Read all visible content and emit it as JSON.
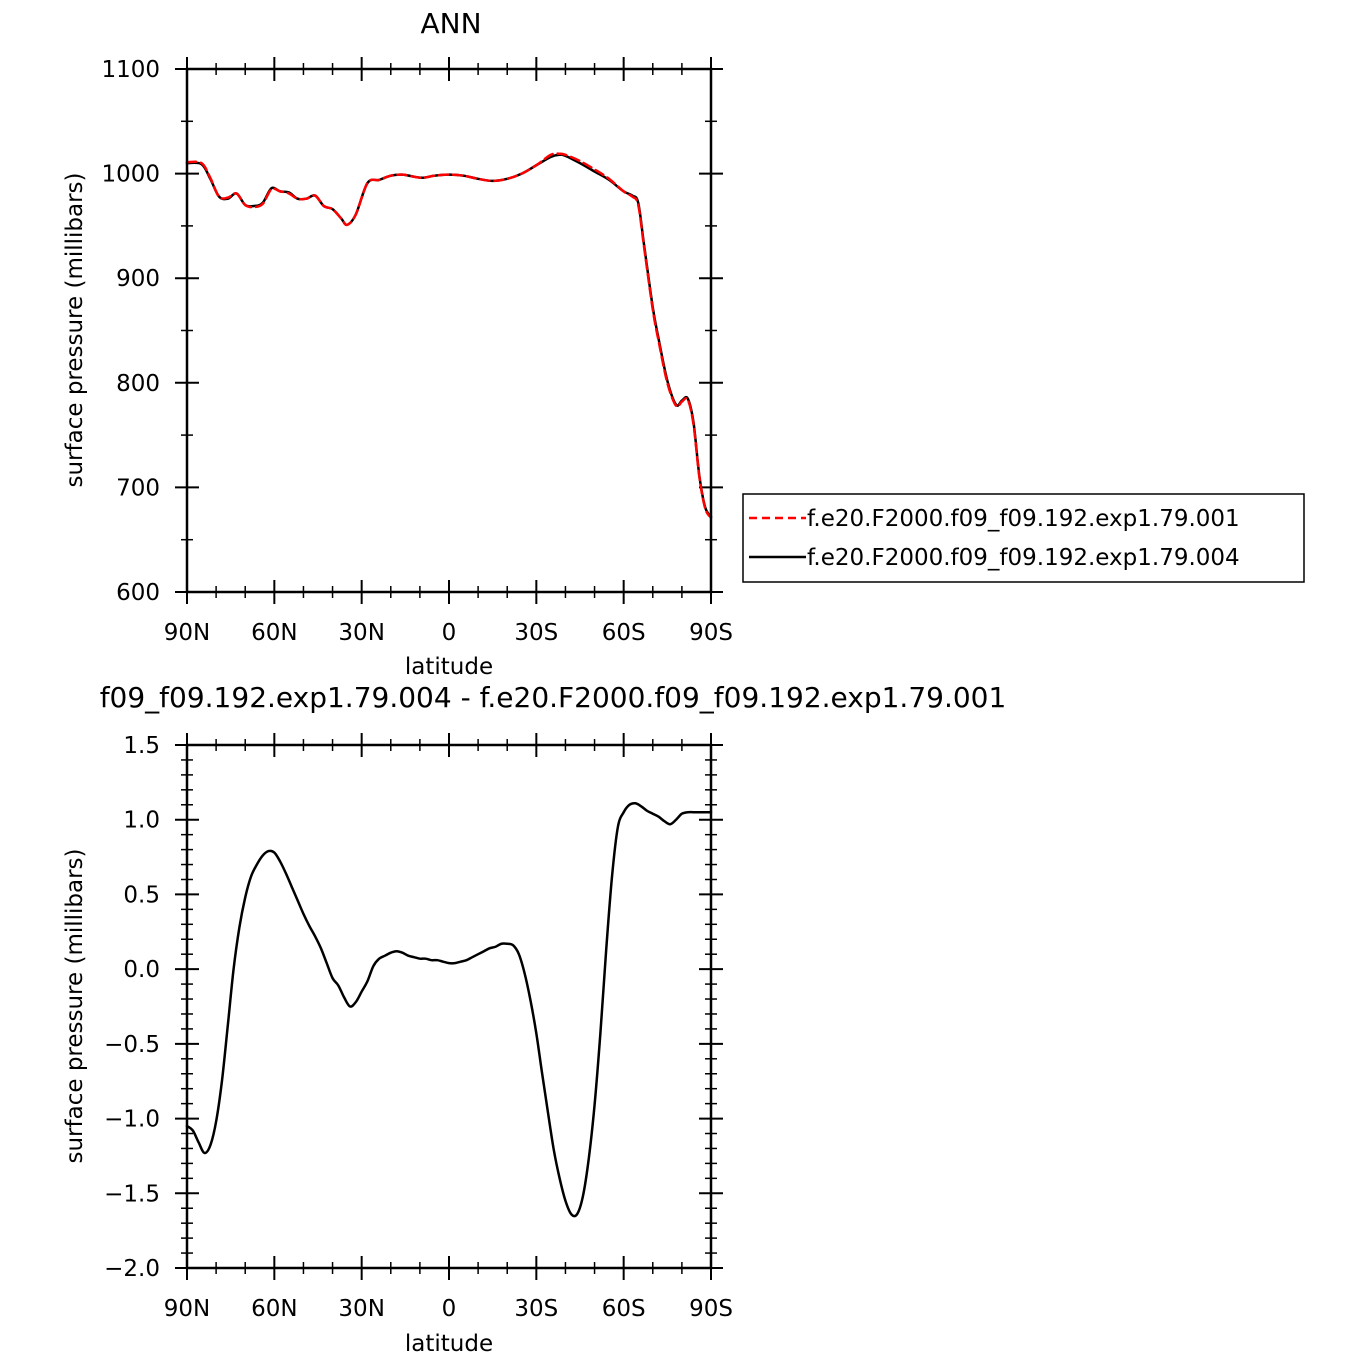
{
  "chart_data": [
    {
      "type": "line",
      "title": "ANN",
      "xlabel": "latitude",
      "ylabel": "surface pressure (millibars)",
      "xlim": [
        90,
        -90
      ],
      "ylim": [
        600,
        1100
      ],
      "yticks": [
        600,
        700,
        800,
        900,
        1000,
        1100
      ],
      "xticks": [
        90,
        60,
        30,
        0,
        -30,
        -60,
        -90
      ],
      "xtick_labels": [
        "90N",
        "60N",
        "30N",
        "0",
        "30S",
        "60S",
        "90S"
      ],
      "legend_position": "right",
      "series": [
        {
          "name": "f.e20.F2000.f09_f09.192.exp1.79.001",
          "color": "#ff0000",
          "dash": "dashed",
          "x": [
            90,
            85,
            82,
            79,
            76,
            73,
            70,
            67,
            64,
            61,
            58,
            55,
            52,
            49,
            46,
            43,
            40,
            37,
            35,
            32,
            28,
            24,
            20,
            16,
            12,
            9,
            5,
            0,
            -5,
            -10,
            -15,
            -20,
            -25,
            -30,
            -35,
            -38,
            -40,
            -45,
            -50,
            -55,
            -60,
            -63,
            -65,
            -67,
            -70,
            -72,
            -75,
            -78,
            -80,
            -82,
            -84,
            -86,
            -88,
            -90
          ],
          "y": [
            1011,
            1010,
            996,
            978,
            977,
            981,
            970,
            968,
            971,
            985,
            983,
            981,
            976,
            976,
            979,
            969,
            966,
            957,
            951,
            961,
            991,
            994,
            998,
            999,
            997,
            996,
            998,
            999,
            998,
            995,
            993,
            995,
            1000,
            1008,
            1018,
            1019,
            1018,
            1012,
            1004,
            995,
            983,
            978,
            970,
            930,
            870,
            840,
            800,
            778,
            782,
            784,
            760,
            710,
            680,
            671
          ]
        },
        {
          "name": "f.e20.F2000.f09_f09.192.exp1.79.004",
          "color": "#000000",
          "dash": "solid",
          "x": [
            90,
            85,
            82,
            79,
            76,
            73,
            70,
            67,
            64,
            61,
            58,
            55,
            52,
            49,
            46,
            43,
            40,
            37,
            35,
            32,
            28,
            24,
            20,
            16,
            12,
            9,
            5,
            0,
            -5,
            -10,
            -15,
            -20,
            -25,
            -30,
            -35,
            -38,
            -40,
            -45,
            -50,
            -55,
            -60,
            -63,
            -65,
            -67,
            -70,
            -72,
            -75,
            -78,
            -80,
            -82,
            -84,
            -86,
            -88,
            -90
          ],
          "y": [
            1010,
            1009,
            995,
            978,
            976,
            981,
            970,
            969,
            972,
            986,
            983,
            982,
            976,
            976,
            979,
            969,
            966,
            957,
            951,
            961,
            991,
            994,
            998,
            999,
            997,
            996,
            998,
            999,
            998,
            995,
            993,
            995,
            1000,
            1008,
            1016,
            1018,
            1017,
            1010,
            1002,
            994,
            983,
            979,
            972,
            932,
            872,
            842,
            802,
            779,
            783,
            785,
            762,
            711,
            681,
            672
          ]
        }
      ]
    },
    {
      "type": "line",
      "title": "f09_f09.192.exp1.79.004 - f.e20.F2000.f09_f09.192.exp1.79.001",
      "xlabel": "latitude",
      "ylabel": "surface pressure (millibars)",
      "xlim": [
        90,
        -90
      ],
      "ylim": [
        -2.0,
        1.5
      ],
      "yticks": [
        -2.0,
        -1.5,
        -1.0,
        -0.5,
        0.0,
        0.5,
        1.0,
        1.5
      ],
      "ytick_labels": [
        "−2.0",
        "−1.5",
        "−1.0",
        "−0.5",
        "0.0",
        "0.5",
        "1.0",
        "1.5"
      ],
      "xticks": [
        90,
        60,
        30,
        0,
        -30,
        -60,
        -90
      ],
      "xtick_labels": [
        "90N",
        "60N",
        "30N",
        "0",
        "30S",
        "60S",
        "90S"
      ],
      "series": [
        {
          "color": "#000000",
          "x": [
            90,
            88,
            86,
            84,
            82,
            80,
            78,
            76,
            74,
            72,
            70,
            68,
            66,
            64,
            62,
            60,
            58,
            56,
            54,
            52,
            50,
            48,
            46,
            44,
            42,
            40,
            38,
            36,
            34,
            32,
            30,
            28,
            26,
            24,
            22,
            20,
            18,
            16,
            14,
            12,
            10,
            8,
            6,
            4,
            2,
            0,
            -2,
            -4,
            -6,
            -8,
            -10,
            -12,
            -14,
            -16,
            -18,
            -20,
            -22,
            -24,
            -26,
            -28,
            -30,
            -32,
            -34,
            -36,
            -38,
            -40,
            -42,
            -44,
            -46,
            -48,
            -50,
            -52,
            -54,
            -56,
            -58,
            -60,
            -62,
            -64,
            -66,
            -68,
            -70,
            -72,
            -74,
            -76,
            -78,
            -80,
            -82,
            -84,
            -86,
            -88,
            -90
          ],
          "y": [
            -1.05,
            -1.08,
            -1.16,
            -1.23,
            -1.18,
            -1.02,
            -0.75,
            -0.38,
            0.0,
            0.28,
            0.48,
            0.62,
            0.7,
            0.76,
            0.79,
            0.78,
            0.72,
            0.64,
            0.55,
            0.46,
            0.37,
            0.29,
            0.22,
            0.14,
            0.04,
            -0.06,
            -0.11,
            -0.19,
            -0.25,
            -0.22,
            -0.15,
            -0.08,
            0.02,
            0.07,
            0.09,
            0.11,
            0.12,
            0.11,
            0.09,
            0.08,
            0.07,
            0.07,
            0.06,
            0.06,
            0.05,
            0.04,
            0.04,
            0.05,
            0.06,
            0.08,
            0.1,
            0.12,
            0.14,
            0.15,
            0.17,
            0.17,
            0.16,
            0.1,
            -0.03,
            -0.21,
            -0.43,
            -0.7,
            -0.96,
            -1.21,
            -1.4,
            -1.55,
            -1.64,
            -1.64,
            -1.52,
            -1.27,
            -0.91,
            -0.43,
            0.13,
            0.62,
            0.95,
            1.05,
            1.1,
            1.11,
            1.09,
            1.06,
            1.04,
            1.02,
            0.99,
            0.97,
            1.0,
            1.04,
            1.05,
            1.05,
            1.05,
            1.05,
            1.05
          ]
        }
      ]
    }
  ]
}
